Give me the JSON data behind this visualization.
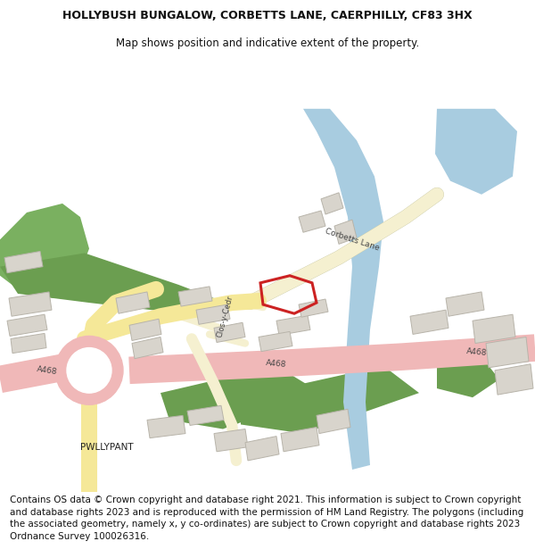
{
  "title_line1": "HOLLYBUSH BUNGALOW, CORBETTS LANE, CAERPHILLY, CF83 3HX",
  "title_line2": "Map shows position and indicative extent of the property.",
  "copyright_text": "Contains OS data © Crown copyright and database right 2021. This information is subject to Crown copyright and database rights 2023 and is reproduced with the permission of HM Land Registry. The polygons (including the associated geometry, namely x, y co-ordinates) are subject to Crown copyright and database rights 2023 Ordnance Survey 100026316.",
  "title_fontsize": 9,
  "copyright_fontsize": 7.5,
  "map_bg": "#ffffff",
  "road_pink": "#f0b8b8",
  "road_yellow": "#f5e898",
  "road_cream": "#f5f0d0",
  "water_blue": "#a8cce0",
  "green_med": "#6b9e50",
  "green_light": "#7ab060",
  "building_gray": "#d8d4cc",
  "building_outline": "#b8b4aa",
  "highlight_red": "#cc2222",
  "text_color": "#111111",
  "label_color": "#444444"
}
